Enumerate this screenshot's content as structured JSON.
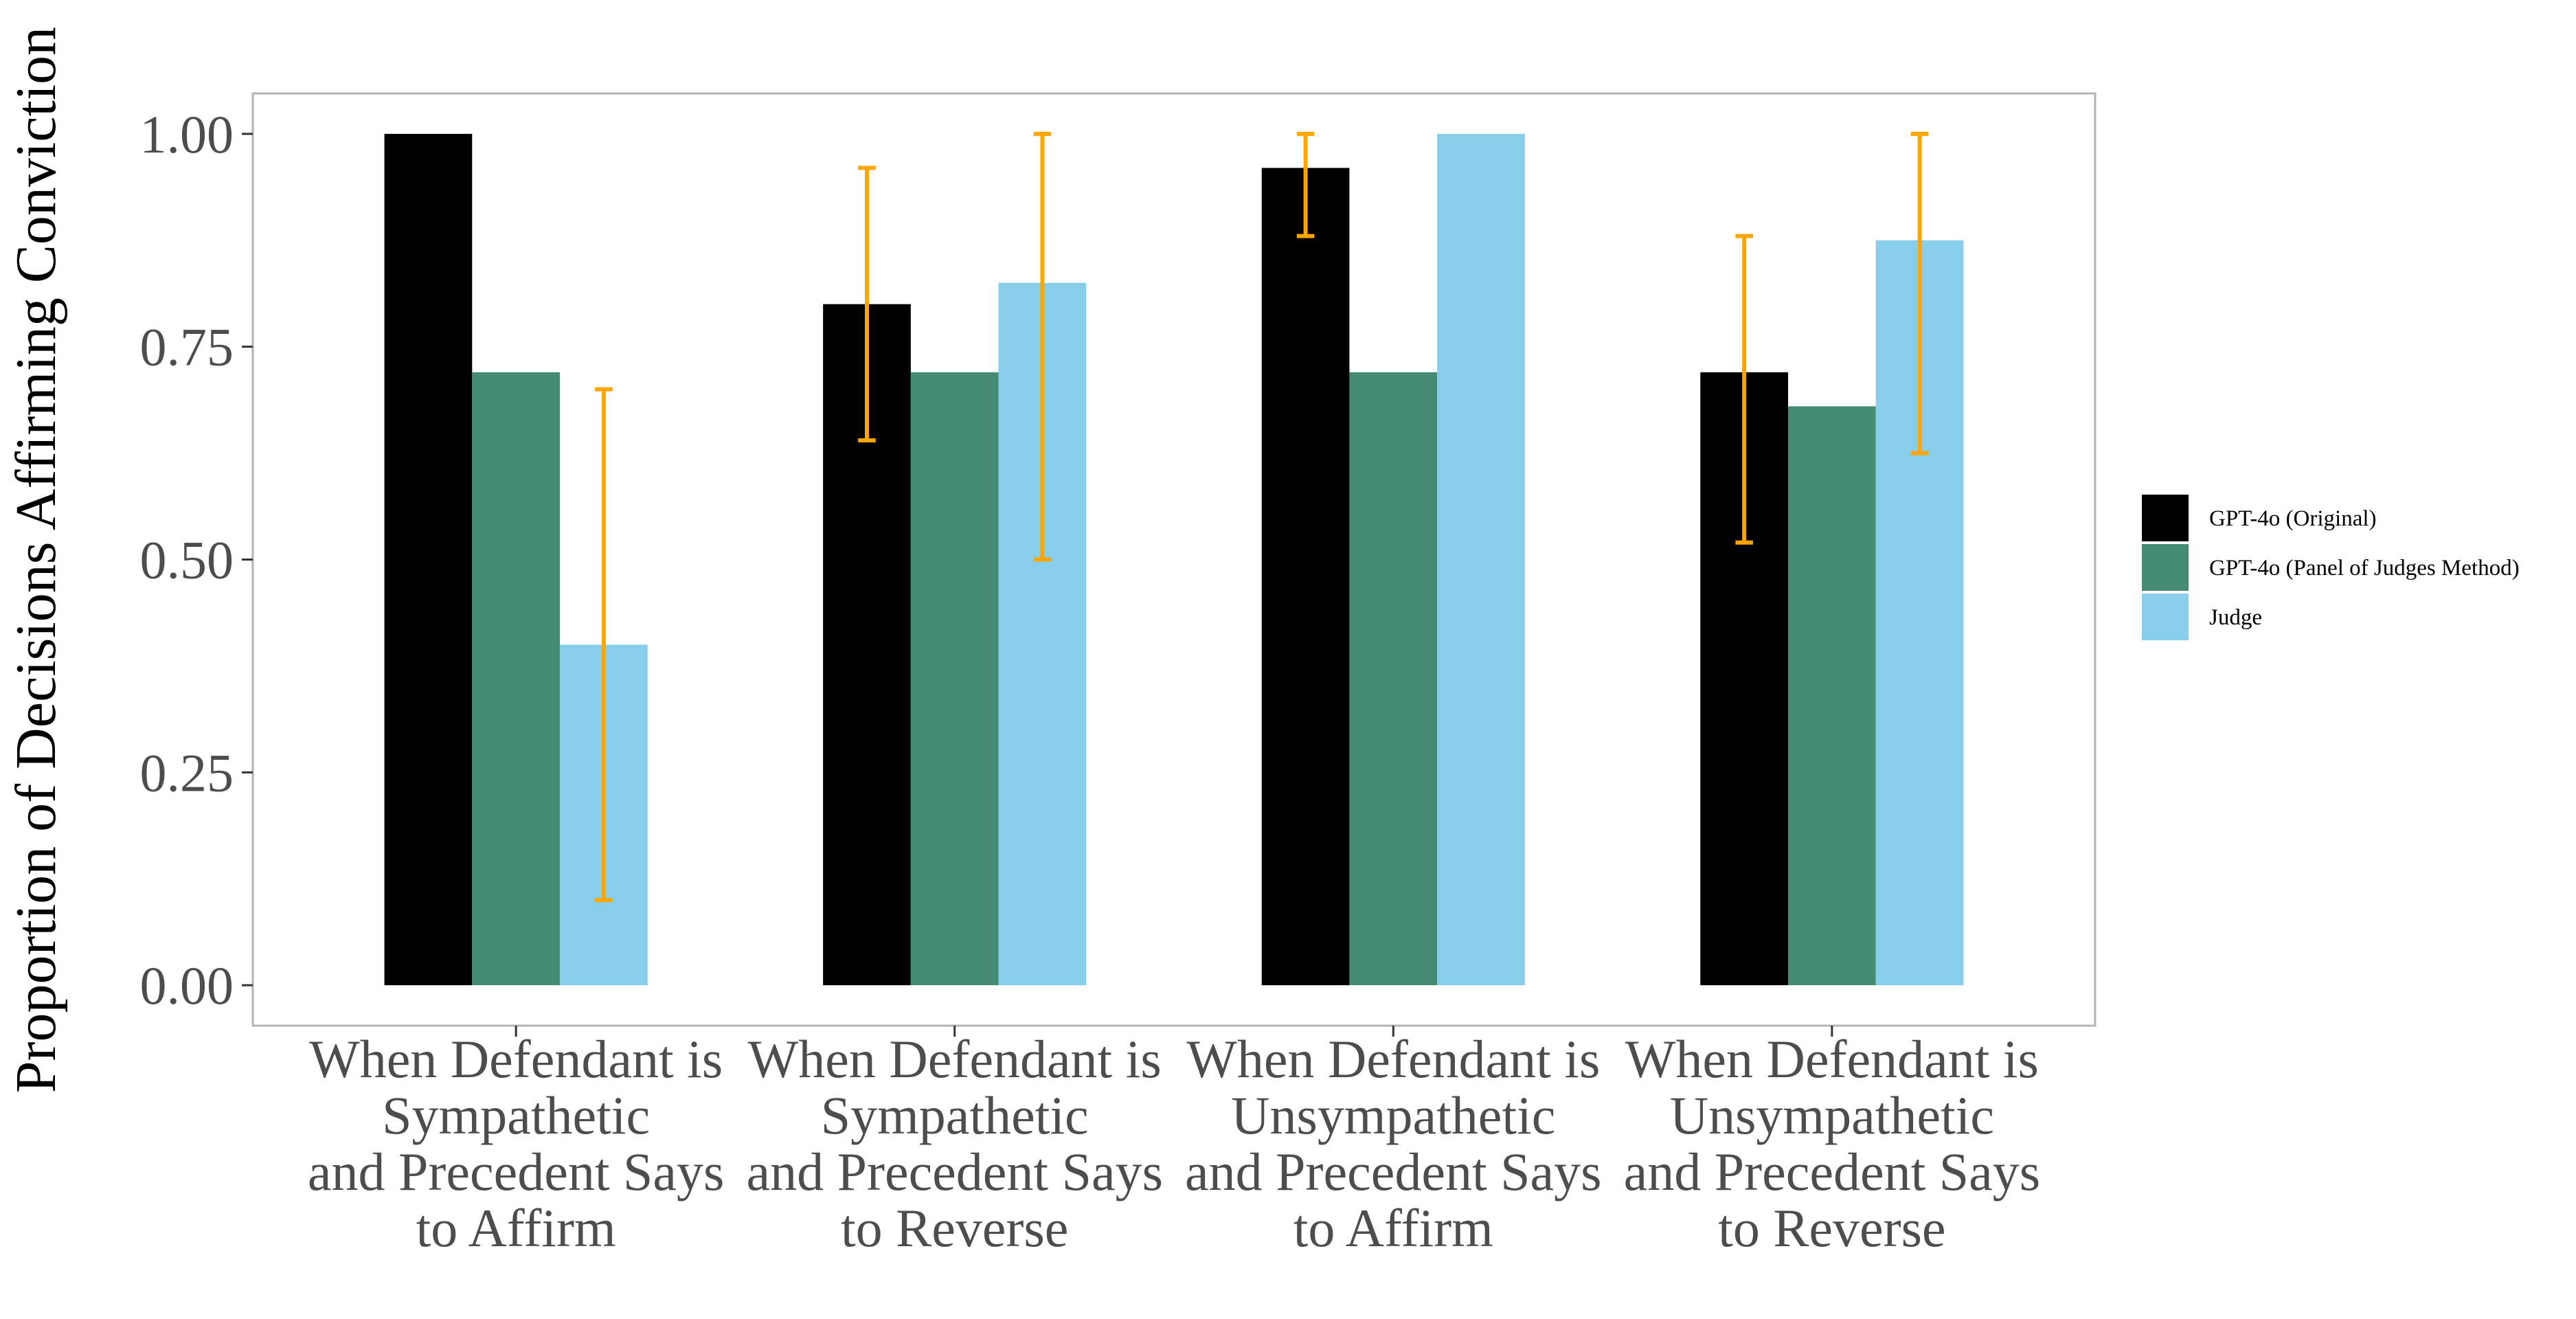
{
  "chart_data": {
    "type": "bar",
    "ylabel": "Proportion of Decisions Affirming Conviction",
    "xlabel": "",
    "ylim": [
      -0.0475,
      1.0475
    ],
    "yticks": [
      "0.00",
      "0.25",
      "0.50",
      "0.75",
      "1.00"
    ],
    "ytick_values": [
      0,
      0.25,
      0.5,
      0.75,
      1.0
    ],
    "categories": [
      [
        "When Defendant is",
        "Sympathetic",
        "and Precedent Says",
        "to Affirm"
      ],
      [
        "When Defendant is",
        "Sympathetic",
        "and Precedent Says",
        "to Reverse"
      ],
      [
        "When Defendant is",
        "Unsympathetic",
        "and Precedent Says",
        "to Affirm"
      ],
      [
        "When Defendant is",
        "Unsympathetic",
        "and Precedent Says",
        "to Reverse"
      ]
    ],
    "series": [
      {
        "name": "GPT-4o (Original)",
        "color": "#000000",
        "values": [
          1.0,
          0.8,
          0.96,
          0.72
        ],
        "error_low": [
          null,
          0.64,
          0.88,
          0.52
        ],
        "error_high": [
          null,
          0.96,
          1.0,
          0.88
        ]
      },
      {
        "name": "GPT-4o (Panel of Judges Method)",
        "color": "#458b74",
        "values": [
          0.72,
          0.72,
          0.72,
          0.68
        ],
        "error_low": [
          null,
          null,
          null,
          null
        ],
        "error_high": [
          null,
          null,
          null,
          null
        ]
      },
      {
        "name": "Judge",
        "color": "#87ceeb",
        "values": [
          0.4,
          0.825,
          1.0,
          0.875
        ],
        "error_low": [
          0.1,
          0.5,
          null,
          0.625
        ],
        "error_high": [
          0.7,
          1.0,
          null,
          1.0
        ]
      }
    ],
    "error_bar_color": "#ffa500",
    "panel_border_color": "#b3b3b3",
    "grid": false,
    "legend_position": "right"
  }
}
